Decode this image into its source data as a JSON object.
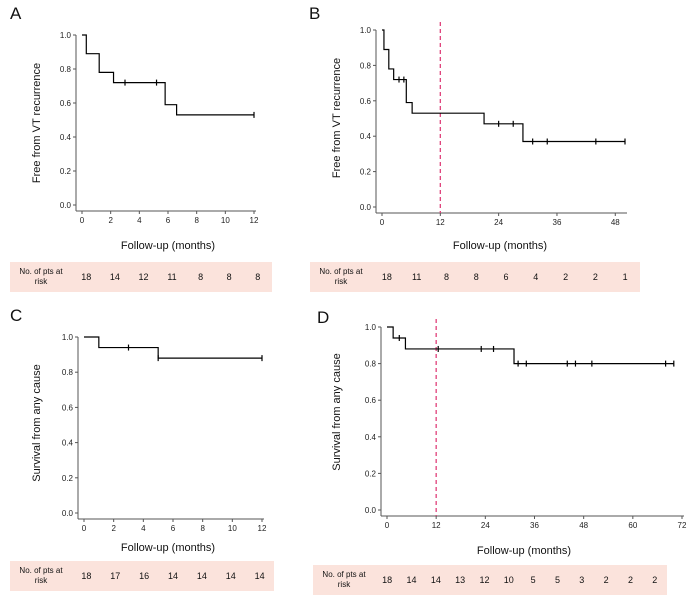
{
  "risk_header": [
    "No. of pts at",
    "risk"
  ],
  "colors": {
    "curve": "#000000",
    "axis": "#555555",
    "landmark": "#e0407a",
    "risk_bg": "#fbe3dc"
  },
  "panels": [
    {
      "letter": "A",
      "ylabel": "Free from VT recurrence",
      "xlabel": "Follow-up (months)",
      "risk": [
        "18",
        "14",
        "12",
        "11",
        "8",
        "8",
        "8"
      ]
    },
    {
      "letter": "B",
      "ylabel": "Free from VT recurrence",
      "xlabel": "Follow-up (months)",
      "risk": [
        "18",
        "11",
        "8",
        "8",
        "6",
        "4",
        "2",
        "2",
        "1"
      ]
    },
    {
      "letter": "C",
      "ylabel": "Survival from any cause",
      "xlabel": "Follow-up (months)",
      "risk": [
        "18",
        "17",
        "16",
        "14",
        "14",
        "14",
        "14"
      ]
    },
    {
      "letter": "D",
      "ylabel": "Survival from any cause",
      "xlabel": "Follow-up (months)",
      "risk": [
        "18",
        "14",
        "14",
        "13",
        "12",
        "10",
        "5",
        "5",
        "3",
        "2",
        "2",
        "2"
      ]
    }
  ],
  "chart_data": [
    {
      "type": "line",
      "step": true,
      "xticks": [
        "0",
        "2",
        "4",
        "6",
        "8",
        "10",
        "12"
      ],
      "yticks": [
        "0.0",
        "0.2",
        "0.4",
        "0.6",
        "0.8",
        "1.0"
      ],
      "xlim": [
        0,
        12
      ],
      "ylim": [
        0,
        1
      ],
      "steps": [
        [
          0,
          1.0
        ],
        [
          0.3,
          0.89
        ],
        [
          1.2,
          0.78
        ],
        [
          2.2,
          0.72
        ],
        [
          5.8,
          0.59
        ],
        [
          6.6,
          0.53
        ],
        [
          12,
          0.53
        ]
      ],
      "censor": [
        [
          3,
          0.72
        ],
        [
          5.2,
          0.72
        ],
        [
          12,
          0.53
        ]
      ],
      "landmark": null
    },
    {
      "type": "line",
      "step": true,
      "xticks": [
        "0",
        "12",
        "24",
        "36",
        "48"
      ],
      "yticks": [
        "0.0",
        "0.2",
        "0.4",
        "0.6",
        "0.8",
        "1.0"
      ],
      "xlim": [
        0,
        50
      ],
      "ylim": [
        0,
        1
      ],
      "steps": [
        [
          0,
          1.0
        ],
        [
          0.4,
          0.89
        ],
        [
          1.4,
          0.78
        ],
        [
          2.4,
          0.72
        ],
        [
          5,
          0.59
        ],
        [
          6.2,
          0.53
        ],
        [
          21,
          0.47
        ],
        [
          29,
          0.37
        ],
        [
          50,
          0.37
        ]
      ],
      "censor": [
        [
          3.5,
          0.72
        ],
        [
          4.5,
          0.72
        ],
        [
          24,
          0.47
        ],
        [
          27,
          0.47
        ],
        [
          31,
          0.37
        ],
        [
          34,
          0.37
        ],
        [
          44,
          0.37
        ],
        [
          50,
          0.37
        ]
      ],
      "landmark": 12
    },
    {
      "type": "line",
      "step": true,
      "xticks": [
        "0",
        "2",
        "4",
        "6",
        "8",
        "10",
        "12"
      ],
      "yticks": [
        "0.0",
        "0.2",
        "0.4",
        "0.6",
        "0.8",
        "1.0"
      ],
      "xlim": [
        0,
        12
      ],
      "ylim": [
        0,
        1
      ],
      "steps": [
        [
          0,
          1.0
        ],
        [
          1,
          0.94
        ],
        [
          5,
          0.88
        ],
        [
          12,
          0.88
        ]
      ],
      "censor": [
        [
          3,
          0.94
        ],
        [
          5,
          0.88
        ],
        [
          12,
          0.88
        ]
      ],
      "landmark": null
    },
    {
      "type": "line",
      "step": true,
      "xticks": [
        "0",
        "12",
        "24",
        "36",
        "48",
        "60",
        "72"
      ],
      "yticks": [
        "0.0",
        "0.2",
        "0.4",
        "0.6",
        "0.8",
        "1.0"
      ],
      "xlim": [
        0,
        72
      ],
      "ylim": [
        0,
        1
      ],
      "steps": [
        [
          0,
          1.0
        ],
        [
          1.5,
          0.94
        ],
        [
          4.5,
          0.88
        ],
        [
          31,
          0.8
        ],
        [
          70,
          0.8
        ]
      ],
      "censor": [
        [
          3,
          0.94
        ],
        [
          12.5,
          0.88
        ],
        [
          23,
          0.88
        ],
        [
          26,
          0.88
        ],
        [
          32,
          0.8
        ],
        [
          34,
          0.8
        ],
        [
          44,
          0.8
        ],
        [
          46,
          0.8
        ],
        [
          50,
          0.8
        ],
        [
          68,
          0.8
        ],
        [
          70,
          0.8
        ]
      ],
      "landmark": 12
    }
  ]
}
